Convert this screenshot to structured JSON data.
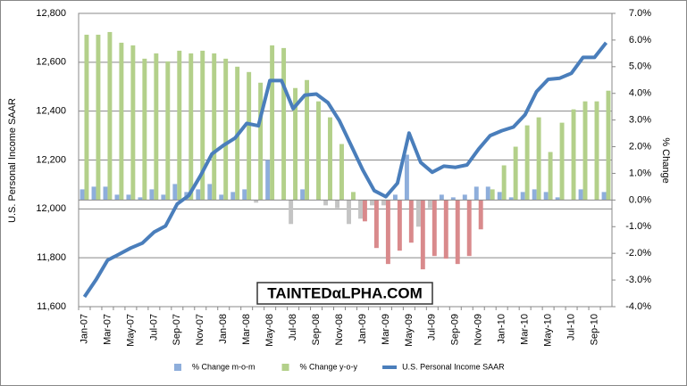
{
  "chart_data": {
    "type": "combo",
    "y_axis_label": "U.S. Personal Income SAAR",
    "y2_axis_label": "% Change",
    "watermark": "TAINTEDαLPHA.COM",
    "categories": [
      "Jan-07",
      null,
      "Mar-07",
      null,
      "May-07",
      null,
      "Jul-07",
      null,
      "Sep-07",
      null,
      "Nov-07",
      null,
      "Jan-08",
      null,
      "Mar-08",
      null,
      "May-08",
      null,
      "Jul-08",
      null,
      "Sep-08",
      null,
      "Nov-08",
      null,
      "Jan-09",
      null,
      "Mar-09",
      null,
      "May-09",
      null,
      "Jul-09",
      null,
      "Sep-09",
      null,
      "Nov-09",
      null,
      "Jan-10",
      null,
      "Mar-10",
      null,
      "May-10",
      null,
      "Jul-10",
      null,
      "Sep-10",
      null
    ],
    "series": [
      {
        "name": "% Change m-o-m",
        "type": "bar",
        "axis": "y2",
        "color": "#8eaedb",
        "negative_color": "#c4c4c4",
        "values": [
          0.4,
          0.5,
          0.5,
          0.2,
          0.2,
          0.1,
          0.4,
          0.2,
          0.6,
          0.3,
          0.4,
          0.6,
          0.2,
          0.3,
          0.4,
          -0.1,
          1.5,
          0.0,
          -0.9,
          0.4,
          0.0,
          -0.2,
          -0.3,
          -0.9,
          -0.7,
          -0.2,
          -0.2,
          0.2,
          1.7,
          -1.0,
          -0.3,
          0.2,
          0.1,
          0.2,
          0.5,
          0.5,
          0.3,
          0.1,
          0.3,
          0.4,
          0.3,
          0.1,
          0.0,
          0.4,
          0.0,
          0.3
        ]
      },
      {
        "name": "% Change y-o-y",
        "type": "bar",
        "axis": "y2",
        "color": "#b3d08a",
        "negative_color": "#d98a8c",
        "values": [
          6.2,
          6.2,
          6.3,
          5.9,
          5.8,
          5.3,
          5.5,
          5.2,
          5.6,
          5.5,
          5.6,
          5.5,
          5.3,
          5.0,
          4.8,
          4.4,
          5.8,
          5.7,
          4.2,
          4.5,
          3.7,
          3.1,
          2.1,
          0.3,
          -0.8,
          -1.8,
          -2.4,
          -1.9,
          -1.6,
          -2.6,
          -2.1,
          -2.2,
          -2.4,
          -2.1,
          -1.1,
          0.4,
          1.3,
          2.0,
          2.8,
          3.1,
          1.8,
          2.9,
          3.4,
          3.7,
          3.7,
          4.1
        ]
      },
      {
        "name": "U.S. Personal Income SAAR",
        "type": "line",
        "color": "#4a7ebb",
        "values": [
          11640,
          11710,
          11790,
          11815,
          11840,
          11860,
          11905,
          11930,
          12020,
          12055,
          12135,
          12225,
          12260,
          12290,
          12350,
          12340,
          12525,
          12525,
          12410,
          12465,
          12470,
          12435,
          12360,
          12260,
          12160,
          12075,
          12050,
          12105,
          12310,
          12190,
          12150,
          12175,
          12170,
          12180,
          12245,
          12300,
          12320,
          12335,
          12385,
          12480,
          12530,
          12535,
          12555,
          12620,
          12620,
          12680
        ]
      }
    ],
    "ylim": [
      11600,
      12800
    ],
    "yticks": [
      {
        "value": 11600,
        "label": "11,600"
      },
      {
        "value": 11800,
        "label": "11,800"
      },
      {
        "value": 12000,
        "label": "12,000"
      },
      {
        "value": 12200,
        "label": "12,200"
      },
      {
        "value": 12400,
        "label": "12,400"
      },
      {
        "value": 12600,
        "label": "12,600"
      },
      {
        "value": 12800,
        "label": "12,800"
      }
    ],
    "y2lim": [
      -4,
      7
    ],
    "y2ticks": [
      {
        "value": -4,
        "label": "-4.0%"
      },
      {
        "value": -3,
        "label": "-3.0%"
      },
      {
        "value": -2,
        "label": "-2.0%"
      },
      {
        "value": -1,
        "label": "-1.0%"
      },
      {
        "value": 0,
        "label": "0.0%"
      },
      {
        "value": 1,
        "label": "1.0%"
      },
      {
        "value": 2,
        "label": "2.0%"
      },
      {
        "value": 3,
        "label": "3.0%"
      },
      {
        "value": 4,
        "label": "4.0%"
      },
      {
        "value": 5,
        "label": "5.0%"
      },
      {
        "value": 6,
        "label": "6.0%"
      },
      {
        "value": 7,
        "label": "7.0%"
      }
    ],
    "grid": true,
    "legend": "bottom"
  }
}
